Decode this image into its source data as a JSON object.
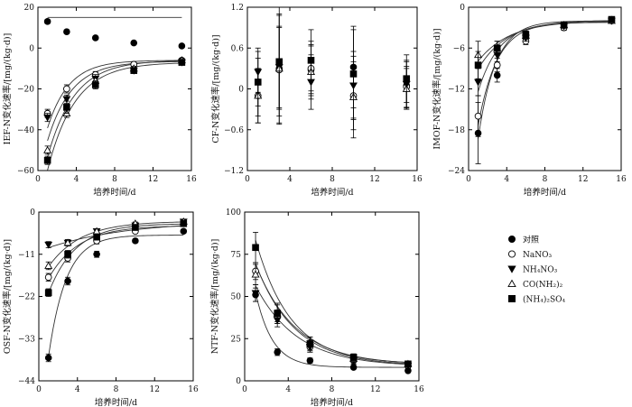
{
  "chart_data": [
    {
      "id": "ief",
      "type": "scatter",
      "xlabel": "培养时间/d",
      "ylabel": "IEF-N变化速率/[mg/(kg·d)]",
      "xlim": [
        0,
        16
      ],
      "ylim": [
        -60,
        20
      ],
      "xticks": [
        0,
        4,
        8,
        12,
        16
      ],
      "yticks": [
        -60,
        -40,
        -20,
        0,
        20
      ],
      "x": [
        1,
        3,
        6,
        10,
        15
      ],
      "series": [
        {
          "key": "ctrl",
          "values": [
            13,
            8,
            5,
            2.5,
            1
          ],
          "err": [
            1,
            1,
            0.8,
            0.5,
            0.5
          ],
          "curve": [
            15,
            0.13,
            0
          ]
        },
        {
          "key": "nano3",
          "values": [
            -32,
            -20,
            -13,
            -8,
            -6
          ],
          "err": [
            2,
            2,
            1.5,
            1,
            1
          ],
          "curve": [
            -6,
            0.45,
            -52
          ]
        },
        {
          "key": "nh4no3",
          "values": [
            -34,
            -25,
            -15,
            -11,
            -7
          ],
          "err": [
            2,
            2,
            2,
            1,
            1
          ],
          "curve": [
            -6.5,
            0.4,
            -58
          ]
        },
        {
          "key": "urea",
          "values": [
            -50,
            -32,
            -16,
            -10,
            -6
          ],
          "err": [
            2,
            2,
            2,
            1,
            1
          ],
          "curve": [
            -6,
            0.36,
            -68
          ]
        },
        {
          "key": "ams",
          "values": [
            -55,
            -29,
            -18,
            -11,
            -7
          ],
          "err": [
            2,
            3,
            2,
            1,
            1
          ],
          "curve": [
            -7,
            0.35,
            -75
          ]
        }
      ]
    },
    {
      "id": "cf",
      "type": "scatter",
      "xlabel": "培养时间/d",
      "ylabel": "CF-N变化速率/[mg/(kg·d)]",
      "xlim": [
        0,
        16
      ],
      "ylim": [
        -1.2,
        1.2
      ],
      "xticks": [
        0,
        4,
        8,
        12,
        16
      ],
      "yticks": [
        -1.2,
        -0.6,
        0,
        0.6,
        1.2
      ],
      "x": [
        1,
        3,
        6,
        10,
        15
      ],
      "series": [
        {
          "key": "ctrl",
          "values": [
            0.1,
            0.3,
            0.28,
            0.32,
            0.05
          ],
          "err": [
            0.35,
            0.6,
            0.35,
            0.6,
            0.35
          ]
        },
        {
          "key": "nano3",
          "values": [
            -0.1,
            0.28,
            0.3,
            -0.1,
            0.03
          ],
          "err": [
            0.4,
            0.8,
            0.4,
            0.5,
            0.3
          ]
        },
        {
          "key": "nh4no3",
          "values": [
            0.25,
            0.32,
            0.1,
            0.05,
            0.07
          ],
          "err": [
            0.3,
            0.6,
            0.4,
            0.5,
            0.35
          ]
        },
        {
          "key": "urea",
          "values": [
            -0.1,
            0.3,
            0.25,
            -0.12,
            0.0
          ],
          "err": [
            0.4,
            0.8,
            0.4,
            0.6,
            0.3
          ]
        },
        {
          "key": "ams",
          "values": [
            0.1,
            0.4,
            0.42,
            0.22,
            0.15
          ],
          "err": [
            0.5,
            0.8,
            0.45,
            0.65,
            0.35
          ]
        }
      ]
    },
    {
      "id": "imof",
      "type": "scatter",
      "xlabel": "培养时间/d",
      "ylabel": "IMOF-N变化速率/[mg/(kg·d)]",
      "xlim": [
        0,
        16
      ],
      "ylim": [
        -24,
        0
      ],
      "xticks": [
        0,
        4,
        8,
        12,
        16
      ],
      "yticks": [
        -24,
        -18,
        -12,
        -6,
        0
      ],
      "x": [
        1,
        3,
        6,
        10,
        15
      ],
      "series": [
        {
          "key": "ctrl",
          "values": [
            -18.5,
            -10,
            -4.5,
            -3,
            -1.8
          ],
          "err": [
            4.5,
            1,
            0.5,
            0.4,
            0.3
          ],
          "curve": [
            -2,
            0.55,
            -30
          ]
        },
        {
          "key": "nano3",
          "values": [
            -16,
            -8.5,
            -5,
            -3,
            -2
          ],
          "err": [
            3,
            1,
            0.5,
            0.4,
            0.3
          ],
          "curve": [
            -2.2,
            0.5,
            -25
          ]
        },
        {
          "key": "nh4no3",
          "values": [
            -11,
            -7,
            -4.5,
            -2.8,
            -2
          ],
          "err": [
            2,
            1,
            0.5,
            0.3,
            0.3
          ],
          "curve": [
            -2.2,
            0.45,
            -16
          ]
        },
        {
          "key": "urea",
          "values": [
            -7,
            -6,
            -4.2,
            -2.6,
            -2
          ],
          "err": [
            2,
            1,
            0.5,
            0.3,
            0.3
          ],
          "curve": [
            -2,
            0.3,
            -8
          ]
        },
        {
          "key": "ams",
          "values": [
            -8.5,
            -6,
            -4,
            -2.6,
            -1.8
          ],
          "err": [
            2,
            1,
            0.5,
            0.3,
            0.3
          ],
          "curve": [
            -1.9,
            0.33,
            -10
          ]
        }
      ]
    },
    {
      "id": "osf",
      "type": "scatter",
      "xlabel": "培养时间/d",
      "ylabel": "OSF-N变化速率/[mg/(kg·d)]",
      "xlim": [
        0,
        16
      ],
      "ylim": [
        -44,
        0
      ],
      "xticks": [
        0,
        4,
        8,
        12,
        16
      ],
      "yticks": [
        -44,
        -33,
        -22,
        -11,
        0
      ],
      "x": [
        1,
        3,
        6,
        10,
        15
      ],
      "series": [
        {
          "key": "ctrl",
          "values": [
            -38,
            -18,
            -11,
            -7.5,
            -5
          ],
          "err": [
            1,
            1,
            0.8,
            0.5,
            0.5
          ],
          "curve": [
            -6,
            0.55,
            -55
          ]
        },
        {
          "key": "nano3",
          "values": [
            -17,
            -12,
            -7.5,
            -5,
            -3
          ],
          "err": [
            1,
            1,
            0.8,
            0.5,
            0.4
          ],
          "curve": [
            -3.5,
            0.32,
            -19
          ]
        },
        {
          "key": "nh4no3",
          "values": [
            -8.5,
            -8,
            -5,
            -3.5,
            -2.5
          ],
          "err": [
            0.8,
            0.8,
            0.6,
            0.4,
            0.4
          ],
          "curve": [
            -2.2,
            0.12,
            -8
          ]
        },
        {
          "key": "urea",
          "values": [
            -14,
            -8,
            -5,
            -3,
            -2.5
          ],
          "err": [
            1,
            0.8,
            0.6,
            0.4,
            0.4
          ],
          "curve": [
            -2.4,
            0.3,
            -16
          ]
        },
        {
          "key": "ams",
          "values": [
            -21,
            -11,
            -6.5,
            -4,
            -3
          ],
          "err": [
            1,
            1,
            0.8,
            0.5,
            0.4
          ],
          "curve": [
            -3,
            0.36,
            -26
          ]
        }
      ]
    },
    {
      "id": "ntf",
      "type": "scatter",
      "xlabel": "培养时间/d",
      "ylabel": "NTF-N变化速率/[mg/(kg·d)]",
      "xlim": [
        0,
        16
      ],
      "ylim": [
        0,
        100
      ],
      "xticks": [
        0,
        4,
        8,
        12,
        16
      ],
      "yticks": [
        0,
        25,
        50,
        75,
        100
      ],
      "x": [
        1,
        3,
        6,
        10,
        15
      ],
      "series": [
        {
          "key": "ctrl",
          "values": [
            51,
            17,
            12,
            8,
            6
          ],
          "err": [
            4,
            2,
            1.5,
            1,
            1
          ],
          "curve": [
            8,
            0.65,
            85
          ]
        },
        {
          "key": "nano3",
          "values": [
            65,
            38,
            20,
            12,
            9
          ],
          "err": [
            5,
            4,
            3,
            2,
            1.5
          ],
          "curve": [
            9,
            0.28,
            80
          ]
        },
        {
          "key": "nh4no3",
          "values": [
            52,
            36,
            20,
            12,
            9
          ],
          "err": [
            5,
            4,
            3,
            2,
            1.5
          ],
          "curve": [
            8.5,
            0.26,
            62
          ]
        },
        {
          "key": "urea",
          "values": [
            63,
            40,
            23,
            13,
            10
          ],
          "err": [
            6,
            5,
            3,
            2,
            1.5
          ],
          "curve": [
            9.5,
            0.27,
            78
          ]
        },
        {
          "key": "ams",
          "values": [
            79,
            40,
            22,
            14,
            10
          ],
          "err": [
            9,
            6,
            4,
            2,
            1.5
          ],
          "curve": [
            10,
            0.31,
            100
          ]
        }
      ]
    }
  ],
  "legend": {
    "items": [
      {
        "key": "ctrl",
        "label": "对照",
        "marker": "circle-filled"
      },
      {
        "key": "nano3",
        "label": "NaNO₃",
        "marker": "circle-open"
      },
      {
        "key": "nh4no3",
        "label": "NH₄NO₃",
        "marker": "triangle-down-filled"
      },
      {
        "key": "urea",
        "label": "CO(NH₂)₂",
        "marker": "triangle-up-open"
      },
      {
        "key": "ams",
        "label": "(NH₄)₂SO₄",
        "marker": "square-filled"
      }
    ]
  }
}
